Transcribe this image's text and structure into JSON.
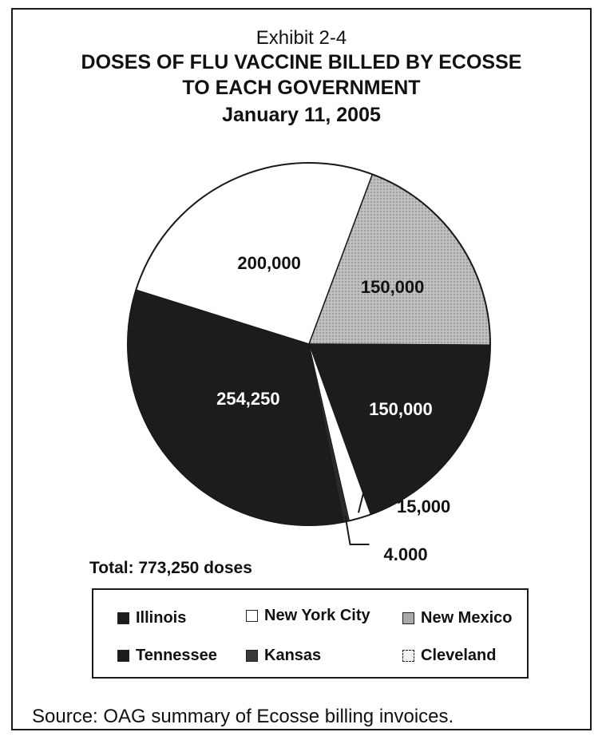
{
  "exhibit": {
    "subtitle": "Exhibit 2-4",
    "title_lines": [
      "DOSES OF FLU VACCINE BILLED BY ECOSSE",
      "TO EACH GOVERNMENT",
      "January 11, 2005"
    ],
    "total_text": "Total: 773,250 doses",
    "source_text": "Source:  OAG summary of Ecosse billing invoices."
  },
  "chart_data": {
    "type": "pie",
    "title": "DOSES OF FLU VACCINE BILLED BY ECOSSE TO EACH GOVERNMENT",
    "subtitle": "Exhibit 2-4",
    "date": "January 11, 2005",
    "total": 773250,
    "legend_placement": "bottom",
    "slices": [
      {
        "label": "Illinois",
        "value": 254250,
        "value_text": "254,250",
        "color": "#1c1c1c",
        "label_color": "#ffffff"
      },
      {
        "label": "New York City",
        "value": 200000,
        "value_text": "200,000",
        "color": "#ffffff",
        "label_color": "#111111"
      },
      {
        "label": "New Mexico",
        "value": 150000,
        "value_text": "150,000",
        "color": "#b4b4b4",
        "label_color": "#111111"
      },
      {
        "label": "Tennessee",
        "value": 150000,
        "value_text": "150,000",
        "color": "#1c1c1c",
        "label_color": "#ffffff"
      },
      {
        "label": "Cleveland",
        "value": 15000,
        "value_text": "15,000",
        "color": "#ffffff",
        "label_color": "#111111"
      },
      {
        "label": "Kansas",
        "value": 4000,
        "value_text": "4,000",
        "color": "#2a2a2a",
        "label_color": "#111111"
      }
    ],
    "legend": [
      {
        "label": "Illinois",
        "color": "#1c1c1c"
      },
      {
        "label": "New York City",
        "color": "#ffffff"
      },
      {
        "label": "New Mexico",
        "color": "#a9a9a9"
      },
      {
        "label": "Tennessee",
        "color": "#1c1c1c"
      },
      {
        "label": "Kansas",
        "color": "#3a3a3a"
      },
      {
        "label": "Cleveland",
        "color": "#f4f4f4"
      }
    ]
  }
}
